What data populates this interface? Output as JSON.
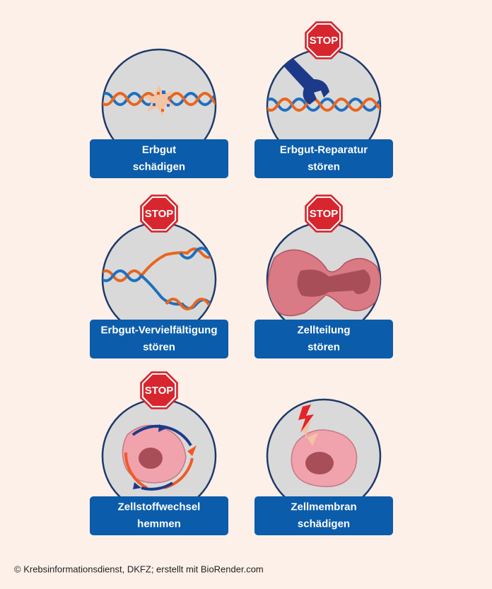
{
  "panels": [
    {
      "lines": [
        "Erbgut",
        "schädigen"
      ]
    },
    {
      "stop": "STOP",
      "lines": [
        "Erbgut-Reparatur",
        "stören"
      ]
    },
    {
      "stop": "STOP",
      "lines": [
        "Erbgut-Vervielfältigung",
        "stören"
      ]
    },
    {
      "stop": "STOP",
      "lines": [
        "Zellteilung",
        "stören"
      ]
    },
    {
      "stop": "STOP",
      "lines": [
        "Zellstoffwechsel",
        "hemmen"
      ]
    },
    {
      "lines": [
        "Zellmembran",
        "schädigen"
      ]
    }
  ],
  "footer": "© Krebsinformationsdienst, DKFZ; erstellt mit BioRender.com"
}
